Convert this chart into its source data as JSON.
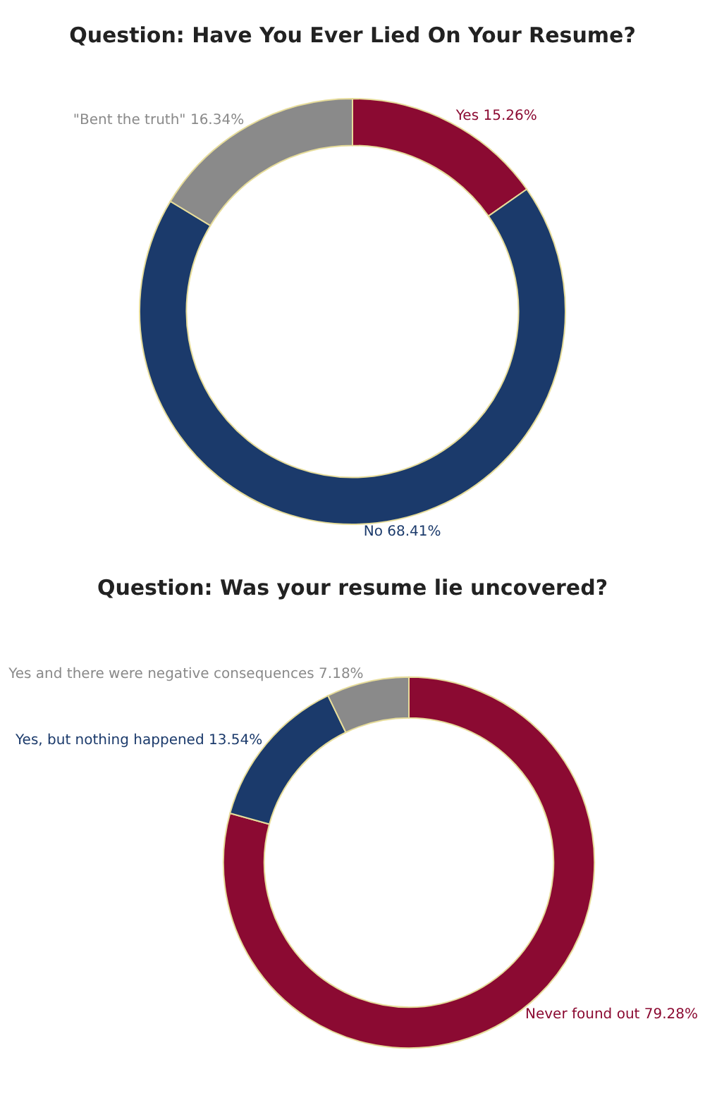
{
  "chart_data": [
    {
      "type": "donut",
      "title": "Question: Have You Ever Lied On Your Resume?",
      "categories": [
        "Yes",
        "No",
        "\"Bent the truth\""
      ],
      "values": [
        15.26,
        68.41,
        16.34
      ],
      "value_labels": [
        "15.26%",
        "68.41%",
        "16.34%"
      ],
      "colors": [
        "#8b0a32",
        "#1b3a6b",
        "#8a8a8a"
      ],
      "legend": false
    },
    {
      "type": "donut",
      "title": "Question: Was your resume lie uncovered?",
      "categories": [
        "Never found out",
        "Yes, but nothing happened",
        "Yes and there were negative consequences"
      ],
      "values": [
        79.28,
        13.54,
        7.18
      ],
      "value_labels": [
        "79.28%",
        "13.54%",
        "7.18%"
      ],
      "colors": [
        "#8b0a32",
        "#1b3a6b",
        "#8a8a8a"
      ],
      "legend": false
    }
  ]
}
